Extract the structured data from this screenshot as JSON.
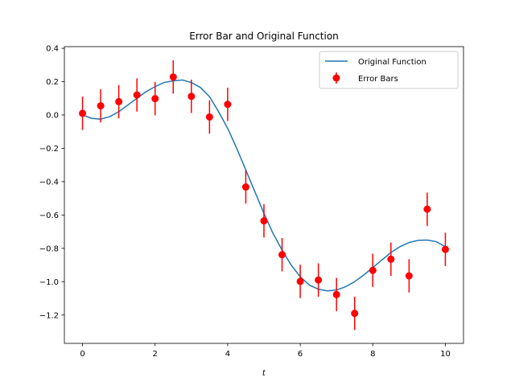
{
  "chart_data": {
    "type": "line",
    "title": "Error Bar and Original Function",
    "xlabel": "t",
    "ylabel": "",
    "xlim": [
      -0.5,
      10.5
    ],
    "ylim": [
      -1.37,
      0.41
    ],
    "x_ticks": [
      0,
      2,
      4,
      6,
      8,
      10
    ],
    "y_ticks": [
      0.4,
      0.2,
      0.0,
      -0.2,
      -0.4,
      -0.6,
      -0.8,
      -1.0,
      -1.2
    ],
    "y_tick_labels": [
      "0.4",
      "0.2",
      "0.0",
      "−0.2",
      "−0.4",
      "−0.6",
      "−0.8",
      "−1.0",
      "−1.2"
    ],
    "x_tick_labels": [
      "0",
      "2",
      "4",
      "6",
      "8",
      "10"
    ],
    "grid": false,
    "legend_position": "top-right",
    "series": [
      {
        "name": "Original Function",
        "kind": "line",
        "color": "#1f77b4",
        "x": [
          0,
          0.25,
          0.5,
          0.75,
          1,
          1.25,
          1.5,
          1.75,
          2,
          2.25,
          2.5,
          2.75,
          3,
          3.25,
          3.5,
          3.75,
          4,
          4.25,
          4.5,
          4.75,
          5,
          5.25,
          5.5,
          5.75,
          6,
          6.25,
          6.5,
          6.75,
          7,
          7.25,
          7.5,
          7.75,
          8,
          8.25,
          8.5,
          8.75,
          9,
          9.25,
          9.5,
          9.75,
          10
        ],
        "y": [
          0.0,
          -0.02,
          -0.025,
          -0.01,
          0.02,
          0.06,
          0.1,
          0.14,
          0.17,
          0.195,
          0.205,
          0.21,
          0.195,
          0.165,
          0.11,
          0.02,
          -0.08,
          -0.2,
          -0.33,
          -0.46,
          -0.59,
          -0.71,
          -0.81,
          -0.9,
          -0.97,
          -1.02,
          -1.045,
          -1.055,
          -1.05,
          -1.03,
          -1.0,
          -0.96,
          -0.915,
          -0.87,
          -0.825,
          -0.79,
          -0.765,
          -0.752,
          -0.75,
          -0.76,
          -0.79
        ]
      },
      {
        "name": "Error Bars",
        "kind": "errorbar",
        "color": "#ff0000",
        "x": [
          0,
          0.5,
          1,
          1.5,
          2,
          2.5,
          3,
          3.5,
          4,
          4.5,
          5,
          5.5,
          6,
          6.5,
          7,
          7.5,
          8,
          8.5,
          9,
          9.5,
          10
        ],
        "y": [
          0.01,
          0.055,
          0.08,
          0.12,
          0.098,
          0.228,
          0.112,
          -0.012,
          0.064,
          -0.432,
          -0.635,
          -0.838,
          -0.998,
          -0.99,
          -1.077,
          -1.19,
          -0.932,
          -0.865,
          -0.965,
          -0.565,
          -0.806
        ],
        "yerr": 0.1
      }
    ]
  }
}
